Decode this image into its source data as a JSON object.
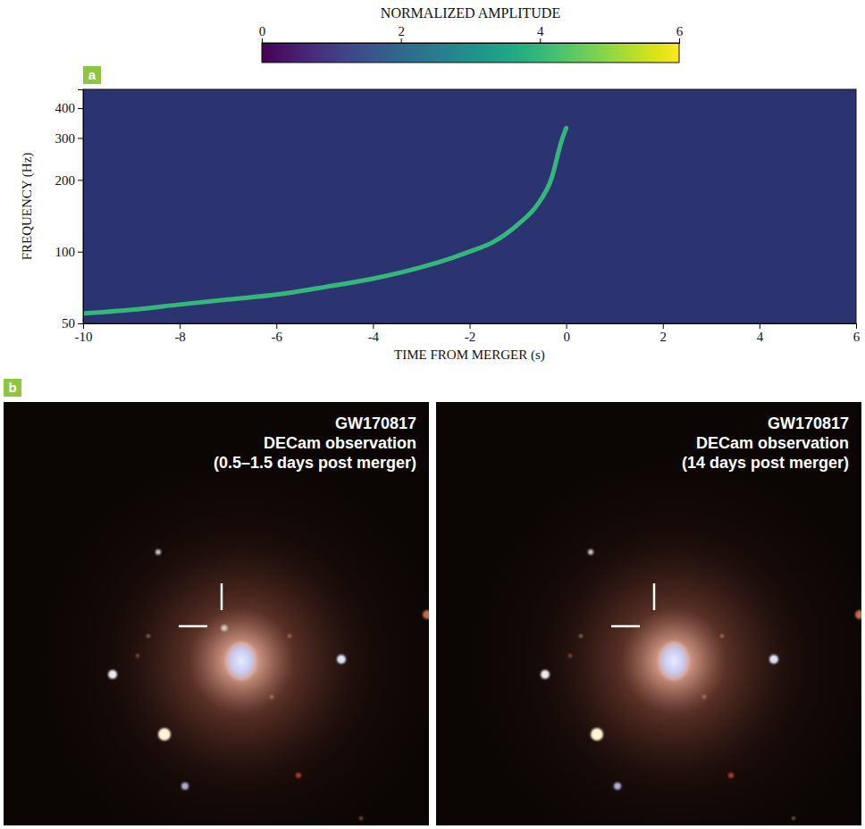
{
  "chart_data": {
    "type": "line",
    "panel_label": "a",
    "x_label": "TIME FROM MERGER (s)",
    "y_label": "FREQUENCY (Hz)",
    "x": [
      -10,
      -9,
      -8,
      -7,
      -6,
      -5,
      -4,
      -3,
      -2,
      -1.5,
      -1,
      -0.6,
      -0.3,
      -0.1,
      0
    ],
    "values": [
      55,
      57,
      60,
      63,
      66,
      71,
      77,
      86,
      100,
      110,
      130,
      157,
      204,
      290,
      330
    ],
    "color": "#35b779",
    "xlim": [
      -10,
      6
    ],
    "xticks": [
      -10,
      -8,
      -6,
      -4,
      -2,
      0,
      2,
      4,
      6
    ],
    "ylim": [
      50,
      480
    ],
    "yticks": [
      50,
      100,
      200,
      300,
      400
    ],
    "log": "y",
    "colorbar": {
      "title": "NORMALIZED AMPLITUDE",
      "range": [
        0,
        6
      ],
      "ticks": [
        0,
        2,
        4,
        6
      ]
    }
  },
  "images": {
    "panel_label": "b",
    "frames": [
      {
        "lines": [
          "GW170817",
          "DECam observation",
          "(0.5–1.5 days post merger)"
        ]
      },
      {
        "lines": [
          "GW170817",
          "DECam observation",
          "(14 days post merger)"
        ]
      }
    ]
  }
}
